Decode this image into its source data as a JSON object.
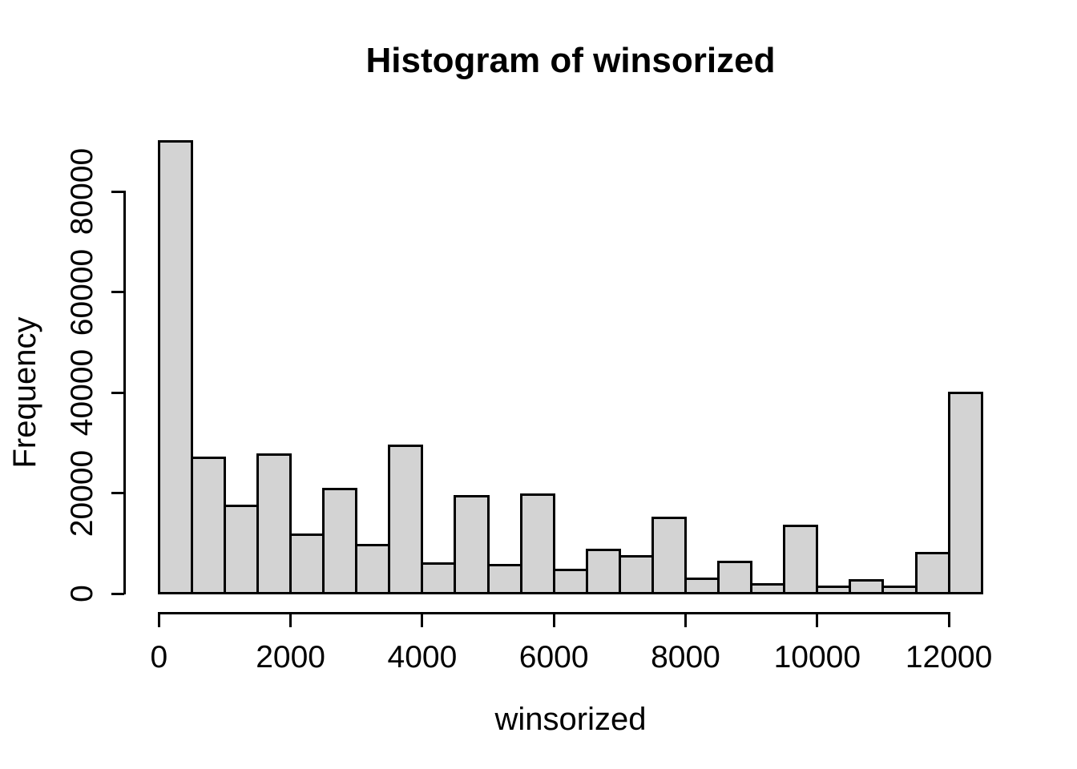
{
  "figure": {
    "background": "#ffffff",
    "text_color": "#000000"
  },
  "chart_data": {
    "type": "bar",
    "subtype": "histogram",
    "title": "Histogram of winsorized",
    "xlabel": "winsorized",
    "ylabel": "Frequency",
    "bin_width": 500,
    "bin_edges": [
      0,
      500,
      1000,
      1500,
      2000,
      2500,
      3000,
      3500,
      4000,
      4500,
      5000,
      5500,
      6000,
      6500,
      7000,
      7500,
      8000,
      8500,
      9000,
      9500,
      10000,
      10500,
      11000,
      11500,
      12000,
      12500
    ],
    "counts": [
      90000,
      27000,
      17400,
      27700,
      11800,
      20800,
      9700,
      29400,
      6000,
      19300,
      5600,
      19700,
      4700,
      8700,
      7400,
      15000,
      2900,
      6300,
      1900,
      13400,
      1400,
      2600,
      1400,
      8000,
      40000
    ],
    "x_ticks": [
      0,
      2000,
      4000,
      6000,
      8000,
      10000,
      12000
    ],
    "y_ticks": [
      0,
      20000,
      40000,
      60000,
      80000
    ],
    "xlim": [
      0,
      12500
    ],
    "ylim": [
      0,
      90000
    ],
    "grid": false,
    "legend": false,
    "bar_fill": "#d3d3d3",
    "bar_border": "#000000",
    "axis_color": "#000000"
  }
}
